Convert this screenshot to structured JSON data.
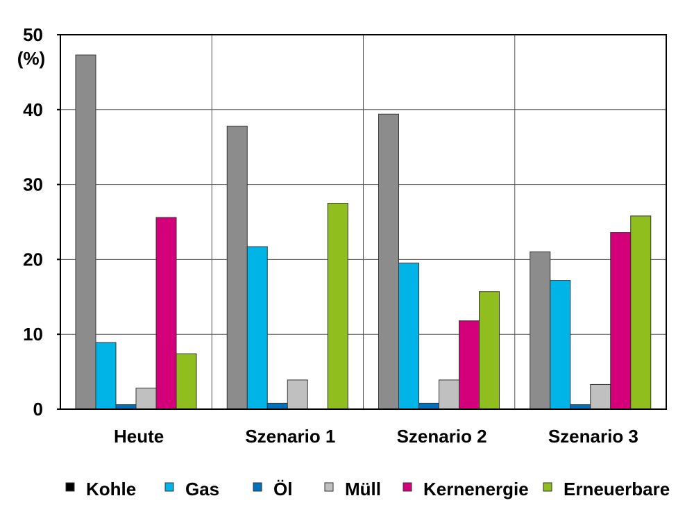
{
  "chart_data": {
    "type": "bar",
    "ylabel": "(%)",
    "ylim": [
      0,
      50
    ],
    "yticks": [
      "0",
      "10",
      "20",
      "30",
      "40",
      "50"
    ],
    "grid": true,
    "legend_position": "bottom",
    "categories": [
      "Heute",
      "Szenario 1",
      "Szenario 2",
      "Szenario 3"
    ],
    "series": [
      {
        "name": "Kohle",
        "color": "#8c8c8c",
        "legend_color": "#000000",
        "values": [
          47.3,
          37.8,
          39.4,
          21.0
        ]
      },
      {
        "name": "Gas",
        "color": "#00b4e8",
        "legend_color": "#00b4e8",
        "values": [
          8.9,
          21.7,
          19.5,
          17.2
        ]
      },
      {
        "name": "Öl",
        "color": "#0070b8",
        "legend_color": "#0070b8",
        "values": [
          0.6,
          0.8,
          0.8,
          0.6
        ]
      },
      {
        "name": "Müll",
        "color": "#c0c0c0",
        "legend_color": "#c0c0c0",
        "values": [
          2.8,
          3.9,
          3.9,
          3.3
        ]
      },
      {
        "name": "Kernenergie",
        "color": "#d4007a",
        "legend_color": "#d4007a",
        "values": [
          25.6,
          0,
          11.8,
          23.6
        ]
      },
      {
        "name": "Erneuerbare",
        "color": "#8fbe1e",
        "legend_color": "#8fbe1e",
        "values": [
          7.4,
          27.5,
          15.7,
          25.8
        ]
      }
    ]
  }
}
